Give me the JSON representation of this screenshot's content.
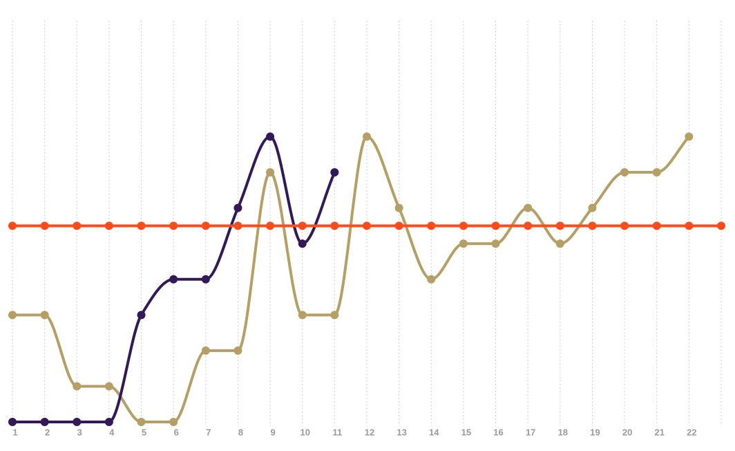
{
  "chart_data": {
    "type": "line",
    "categories": [
      "1",
      "2",
      "3",
      "4",
      "5",
      "6",
      "7",
      "8",
      "9",
      "10",
      "11",
      "12",
      "13",
      "14",
      "15",
      "16",
      "17",
      "18",
      "19",
      "20",
      "21",
      "22",
      null
    ],
    "series": [
      {
        "color": "#b59f65",
        "values": [
          3,
          3,
          1,
          1,
          0,
          0,
          2,
          2,
          7,
          3,
          3,
          8,
          6,
          4,
          5,
          5,
          6,
          5,
          6,
          7,
          7,
          8,
          null
        ]
      },
      {
        "color": "#34195a",
        "values": [
          0,
          0,
          0,
          0,
          3,
          4,
          4,
          6,
          8,
          5,
          7,
          null,
          null,
          null,
          null,
          null,
          null,
          null,
          null,
          null,
          null,
          null,
          null
        ]
      },
      {
        "color": "#ff4a1c",
        "values": [
          5.5,
          5.5,
          5.5,
          5.5,
          5.5,
          5.5,
          5.5,
          5.5,
          5.5,
          5.5,
          5.5,
          5.5,
          5.5,
          5.5,
          5.5,
          5.5,
          5.5,
          5.5,
          5.5,
          5.5,
          5.5,
          5.5,
          5.5
        ]
      }
    ],
    "ylim": [
      0,
      11.25
    ],
    "grid": true,
    "smooth": true
  }
}
